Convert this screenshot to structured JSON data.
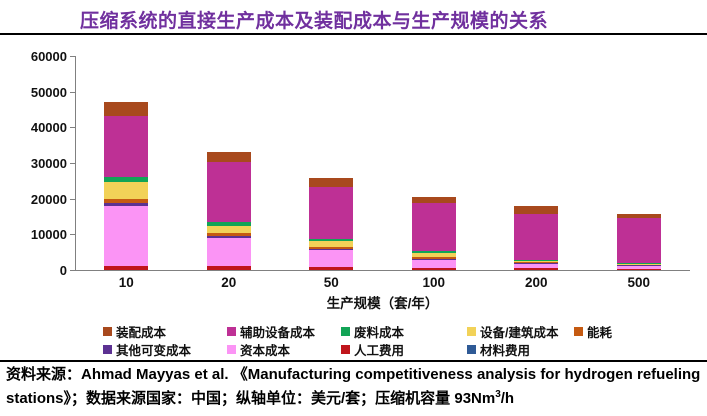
{
  "title": "压缩系统的直接生产成本及装配成本与生产规模的关系",
  "chart_data": {
    "type": "bar",
    "stacked": true,
    "title": "压缩系统的直接生产成本及装配成本与生产规模的关系",
    "categories": [
      "10",
      "20",
      "50",
      "100",
      "200",
      "500"
    ],
    "xlabel": "生产规模（套/年）",
    "ylabel": "美元/套",
    "ylim": [
      0,
      60000
    ],
    "ytick_step": 10000,
    "yticks": [
      "0",
      "10000",
      "20000",
      "30000",
      "40000",
      "50000",
      "60000"
    ],
    "grid": false,
    "legend_position": "bottom",
    "series": [
      {
        "name": "材料费用",
        "color": "#2F5A96",
        "values": [
          0,
          0,
          0,
          0,
          0,
          0
        ]
      },
      {
        "name": "人工费用",
        "color": "#C0151C",
        "values": [
          1200,
          1100,
          800,
          700,
          600,
          400
        ]
      },
      {
        "name": "资本成本",
        "color": "#FB94F5",
        "values": [
          16800,
          7800,
          4800,
          2300,
          1400,
          900
        ]
      },
      {
        "name": "其他可变成本",
        "color": "#5C3192",
        "values": [
          900,
          700,
          300,
          200,
          100,
          100
        ]
      },
      {
        "name": "能耗",
        "color": "#C55A11",
        "values": [
          1000,
          750,
          500,
          500,
          250,
          150
        ]
      },
      {
        "name": "设备/建筑成本",
        "color": "#F2D258",
        "values": [
          4800,
          2000,
          1600,
          1200,
          400,
          200
        ]
      },
      {
        "name": "废料成本",
        "color": "#12A456",
        "values": [
          1400,
          1100,
          800,
          300,
          150,
          100
        ]
      },
      {
        "name": "辅助设备成本",
        "color": "#BE3095",
        "values": [
          17200,
          16900,
          14500,
          13500,
          12900,
          12800
        ]
      },
      {
        "name": "装配成本",
        "color": "#A8491D",
        "values": [
          3900,
          2800,
          2500,
          1900,
          2200,
          1100
        ]
      }
    ],
    "legend_rows": [
      [
        "装配成本",
        "辅助设备成本",
        "废料成本",
        "设备/建筑成本",
        "能耗"
      ],
      [
        "其他可变成本",
        "资本成本",
        "人工费用",
        "材料费用"
      ]
    ]
  },
  "source": {
    "main": "资料来源：Ahmad Mayyas et al. 《Manufacturing competitiveness analysis for hydrogen refueling stations》；数据来源国家：中国；纵轴单位：美元/套；压缩机容量 93Nm",
    "sup": "3",
    "after": "/h"
  }
}
